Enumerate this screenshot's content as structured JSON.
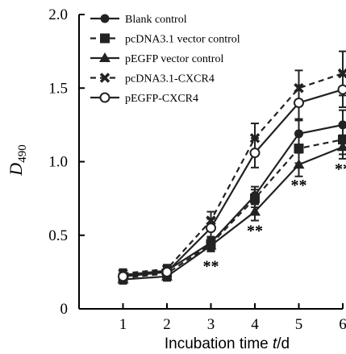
{
  "chart_data": {
    "type": "line",
    "title": "",
    "xlabel": "Incubation time t/d",
    "xlabel_parts": {
      "prefix": "Incubation time ",
      "var": "t",
      "suffix": "/d"
    },
    "ylabel": "D490",
    "ylabel_parts": {
      "main": "D",
      "sub": "490"
    },
    "x": [
      1,
      2,
      3,
      4,
      5,
      6
    ],
    "xlim": [
      0,
      6
    ],
    "ylim": [
      0,
      2.0
    ],
    "xticks": [
      "1",
      "2",
      "3",
      "4",
      "5",
      "6"
    ],
    "yticks": [
      "0",
      "0.5",
      "1.0",
      "1.5",
      "2.0"
    ],
    "ytick_values": [
      0,
      0.5,
      1.0,
      1.5,
      2.0
    ],
    "grid": false,
    "legend_position": "top-left",
    "series": [
      {
        "name": "Blank control",
        "marker": "circle",
        "dash": "solid",
        "values": [
          0.23,
          0.26,
          0.45,
          0.77,
          1.19,
          1.25
        ],
        "errors": [
          0.03,
          0.03,
          0.04,
          0.06,
          0.1,
          0.1
        ]
      },
      {
        "name": "pcDNA3.1 vector control",
        "marker": "square",
        "dash": "dashed",
        "values": [
          0.21,
          0.24,
          0.44,
          0.75,
          1.09,
          1.15
        ],
        "errors": [
          0.03,
          0.03,
          0.04,
          0.06,
          0.1,
          0.1
        ]
      },
      {
        "name": "pEGFP vector control",
        "marker": "triangle",
        "dash": "solid",
        "values": [
          0.2,
          0.22,
          0.43,
          0.66,
          0.98,
          1.1
        ],
        "errors": [
          0.03,
          0.03,
          0.04,
          0.06,
          0.08,
          0.08
        ]
      },
      {
        "name": "pcDNA3.1-CXCR4",
        "marker": "cross",
        "dash": "dashed",
        "values": [
          0.24,
          0.27,
          0.6,
          1.16,
          1.5,
          1.6
        ],
        "errors": [
          0.03,
          0.03,
          0.06,
          0.1,
          0.12,
          0.15
        ]
      },
      {
        "name": "pEGFP-CXCR4",
        "marker": "open-circle",
        "dash": "solid",
        "values": [
          0.22,
          0.25,
          0.55,
          1.06,
          1.4,
          1.49
        ],
        "errors": [
          0.03,
          0.03,
          0.06,
          0.1,
          0.12,
          0.12
        ]
      }
    ],
    "annotations": [
      {
        "text": "**",
        "x": 3,
        "y": 0.3
      },
      {
        "text": "**",
        "x": 4,
        "y": 0.54
      },
      {
        "text": "**",
        "x": 5,
        "y": 0.85
      },
      {
        "text": "**",
        "x": 6,
        "y": 0.96
      }
    ],
    "colors": {
      "line": "#222222",
      "axis": "#000000",
      "background": "#ffffff"
    }
  }
}
